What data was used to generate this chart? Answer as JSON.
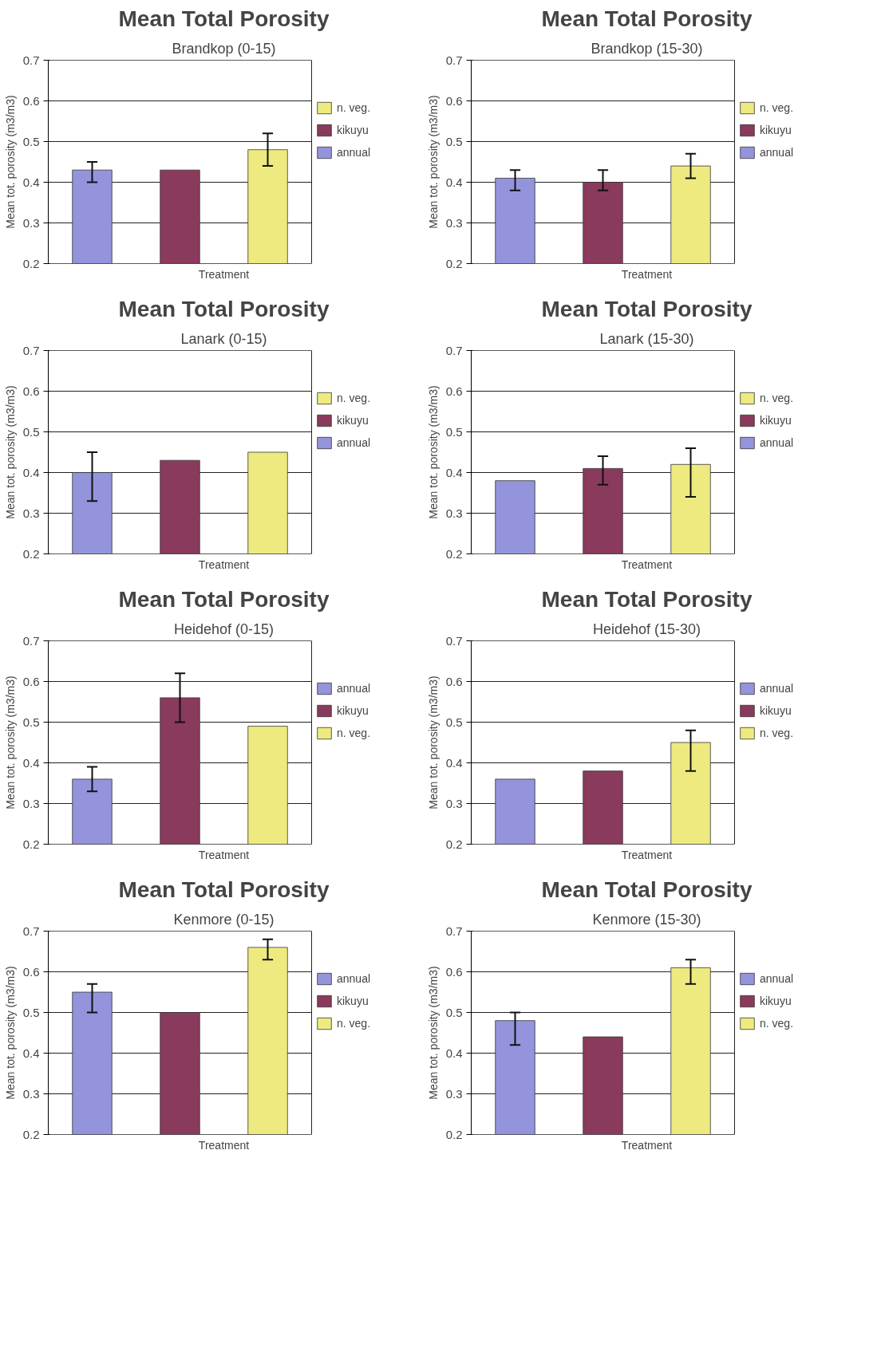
{
  "chart_data": [
    {
      "type": "bar",
      "title": "Mean Total Porosity",
      "subtitle": "Brandkop (0-15)",
      "xlabel": "Treatment",
      "ylabel": "Mean tot. porosity (m3/m3)",
      "categories": [
        null,
        null,
        null
      ],
      "ylim": [
        0.2,
        0.7
      ],
      "yticks": [
        0.2,
        0.3,
        0.4,
        0.5,
        0.6,
        0.7
      ],
      "grid": "y",
      "legend": "right",
      "tick_labels": "y",
      "series": [
        {
          "name": "n. veg.",
          "color": "#eeea80",
          "values": [
            null,
            null,
            0.48
          ],
          "errors": [
            null,
            null,
            [
              0.44,
              0.52
            ]
          ]
        },
        {
          "name": "kikuyu",
          "color": "#8a3a5c",
          "values": [
            null,
            0.43,
            null
          ],
          "errors": [
            null,
            null,
            null
          ]
        },
        {
          "name": "annual",
          "color": "#9494dc",
          "values": [
            0.43,
            null,
            null
          ],
          "errors": [
            [
              0.4,
              0.45
            ],
            null,
            null
          ]
        }
      ]
    },
    {
      "type": "bar",
      "title": "Mean Total Porosity",
      "subtitle": "Brandkop (15-30)",
      "xlabel": "Treatment",
      "ylabel": "Mean tot. porosity (m3/m3)",
      "categories": [
        null,
        null,
        null
      ],
      "ylim": [
        0.2,
        0.7
      ],
      "yticks": [
        0.2,
        0.3,
        0.4,
        0.5,
        0.6,
        0.7
      ],
      "grid": "y",
      "legend": "right",
      "tick_labels": "y",
      "series": [
        {
          "name": "n. veg.",
          "color": "#eeea80",
          "values": [
            null,
            null,
            0.44
          ],
          "errors": [
            null,
            null,
            [
              0.41,
              0.47
            ]
          ]
        },
        {
          "name": "kikuyu",
          "color": "#8a3a5c",
          "values": [
            null,
            0.4,
            null
          ],
          "errors": [
            null,
            [
              0.38,
              0.43
            ],
            null
          ]
        },
        {
          "name": "annual",
          "color": "#9494dc",
          "values": [
            0.41,
            null,
            null
          ],
          "errors": [
            [
              0.38,
              0.43
            ],
            null,
            null
          ]
        }
      ]
    },
    {
      "type": "bar",
      "title": "Mean Total Porosity",
      "subtitle": "Lanark (0-15)",
      "xlabel": "Treatment",
      "ylabel": "Mean tot. porosity (m3/m3)",
      "categories": [
        null,
        null,
        null
      ],
      "ylim": [
        0.2,
        0.7
      ],
      "yticks": [
        0.2,
        0.3,
        0.4,
        0.5,
        0.6,
        0.7
      ],
      "grid": "y",
      "legend": "right",
      "tick_labels": "y",
      "series": [
        {
          "name": "n. veg.",
          "color": "#eeea80",
          "values": [
            null,
            null,
            0.45
          ],
          "errors": [
            null,
            null,
            null
          ]
        },
        {
          "name": "kikuyu",
          "color": "#8a3a5c",
          "values": [
            null,
            0.43,
            null
          ],
          "errors": [
            null,
            null,
            null
          ]
        },
        {
          "name": "annual",
          "color": "#9494dc",
          "values": [
            0.4,
            null,
            null
          ],
          "errors": [
            [
              0.33,
              0.45
            ],
            null,
            null
          ]
        }
      ]
    },
    {
      "type": "bar",
      "title": "Mean Total Porosity",
      "subtitle": "Lanark (15-30)",
      "xlabel": "Treatment",
      "ylabel": "Mean tot. porosity (m3/m3)",
      "categories": [
        null,
        null,
        null
      ],
      "ylim": [
        0.2,
        0.7
      ],
      "yticks": [
        0.2,
        0.3,
        0.4,
        0.5,
        0.6,
        0.7
      ],
      "grid": "y",
      "legend": "right",
      "tick_labels": "y",
      "series": [
        {
          "name": "n. veg.",
          "color": "#eeea80",
          "values": [
            null,
            null,
            0.42
          ],
          "errors": [
            null,
            null,
            [
              0.34,
              0.46
            ]
          ]
        },
        {
          "name": "kikuyu",
          "color": "#8a3a5c",
          "values": [
            null,
            0.41,
            null
          ],
          "errors": [
            null,
            [
              0.37,
              0.44
            ],
            null
          ]
        },
        {
          "name": "annual",
          "color": "#9494dc",
          "values": [
            0.38,
            null,
            null
          ],
          "errors": [
            null,
            null,
            null
          ]
        }
      ]
    },
    {
      "type": "bar",
      "title": "Mean Total Porosity",
      "subtitle": "Heidehof (0-15)",
      "xlabel": "Treatment",
      "ylabel": "Mean tot. porosity (m3/m3)",
      "categories": [
        null,
        null,
        null
      ],
      "ylim": [
        0.2,
        0.7
      ],
      "yticks": [
        0.2,
        0.3,
        0.4,
        0.5,
        0.6,
        0.7
      ],
      "grid": "y",
      "legend": "right",
      "tick_labels": "y",
      "series": [
        {
          "name": "annual",
          "color": "#9494dc",
          "values": [
            0.36,
            null,
            null
          ],
          "errors": [
            [
              0.33,
              0.39
            ],
            null,
            null
          ]
        },
        {
          "name": "kikuyu",
          "color": "#8a3a5c",
          "values": [
            null,
            0.56,
            null
          ],
          "errors": [
            null,
            [
              0.5,
              0.62
            ],
            null
          ]
        },
        {
          "name": "n. veg.",
          "color": "#eeea80",
          "values": [
            null,
            null,
            0.49
          ],
          "errors": [
            null,
            null,
            null
          ]
        }
      ]
    },
    {
      "type": "bar",
      "title": "Mean Total Porosity",
      "subtitle": "Heidehof (15-30)",
      "xlabel": "Treatment",
      "ylabel": "Mean tot. porosity (m3/m3)",
      "categories": [
        null,
        null,
        null
      ],
      "ylim": [
        0.2,
        0.7
      ],
      "yticks": [
        0.2,
        0.3,
        0.4,
        0.5,
        0.6,
        0.7
      ],
      "grid": "y",
      "legend": "right",
      "tick_labels": "y",
      "series": [
        {
          "name": "annual",
          "color": "#9494dc",
          "values": [
            0.36,
            null,
            null
          ],
          "errors": [
            null,
            null,
            null
          ]
        },
        {
          "name": "kikuyu",
          "color": "#8a3a5c",
          "values": [
            null,
            0.38,
            null
          ],
          "errors": [
            null,
            null,
            null
          ]
        },
        {
          "name": "n. veg.",
          "color": "#eeea80",
          "values": [
            null,
            null,
            0.45
          ],
          "errors": [
            null,
            null,
            [
              0.38,
              0.48
            ]
          ]
        }
      ]
    },
    {
      "type": "bar",
      "title": "Mean Total Porosity",
      "subtitle": "Kenmore (0-15)",
      "xlabel": "Treatment",
      "ylabel": "Mean tot. porosity (m3/m3)",
      "categories": [
        null,
        null,
        null
      ],
      "ylim": [
        0.2,
        0.7
      ],
      "yticks": [
        0.2,
        0.3,
        0.4,
        0.5,
        0.6,
        0.7
      ],
      "grid": "y",
      "legend": "right",
      "tick_labels": "y",
      "series": [
        {
          "name": "annual",
          "color": "#9494dc",
          "values": [
            0.55,
            null,
            null
          ],
          "errors": [
            [
              0.5,
              0.57
            ],
            null,
            null
          ]
        },
        {
          "name": "kikuyu",
          "color": "#8a3a5c",
          "values": [
            null,
            0.5,
            null
          ],
          "errors": [
            null,
            null,
            null
          ]
        },
        {
          "name": "n. veg.",
          "color": "#eeea80",
          "values": [
            null,
            null,
            0.66
          ],
          "errors": [
            null,
            null,
            [
              0.63,
              0.68
            ]
          ]
        }
      ]
    },
    {
      "type": "bar",
      "title": "Mean Total Porosity",
      "subtitle": "Kenmore (15-30)",
      "xlabel": "Treatment",
      "ylabel": "Mean tot. porosity (m3/m3)",
      "categories": [
        null,
        null,
        null
      ],
      "ylim": [
        0.2,
        0.7
      ],
      "yticks": [
        0.2,
        0.3,
        0.4,
        0.5,
        0.6,
        0.7
      ],
      "grid": "y",
      "legend": "right",
      "tick_labels": "y",
      "series": [
        {
          "name": "annual",
          "color": "#9494dc",
          "values": [
            0.48,
            null,
            null
          ],
          "errors": [
            [
              0.42,
              0.5
            ],
            null,
            null
          ]
        },
        {
          "name": "kikuyu",
          "color": "#8a3a5c",
          "values": [
            null,
            0.44,
            null
          ],
          "errors": [
            null,
            null,
            null
          ]
        },
        {
          "name": "n. veg.",
          "color": "#eeea80",
          "values": [
            null,
            null,
            0.61
          ],
          "errors": [
            null,
            null,
            [
              0.57,
              0.63
            ]
          ]
        }
      ]
    }
  ]
}
